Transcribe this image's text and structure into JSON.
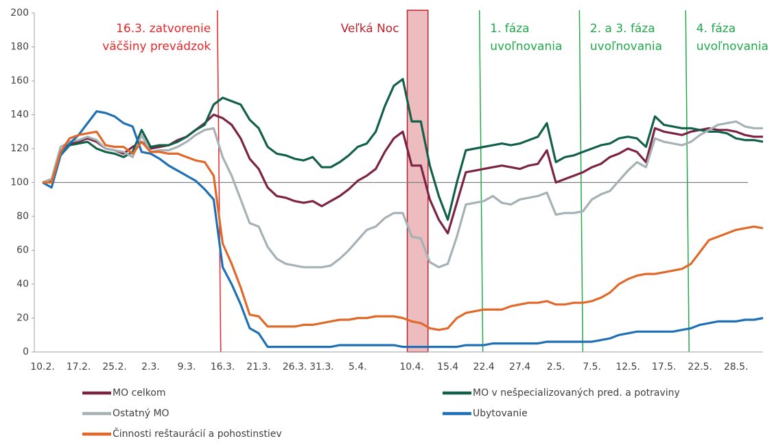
{
  "chart_data": {
    "type": "line",
    "categories": [
      "10.2.",
      null,
      null,
      null,
      "17.2.",
      null,
      null,
      null,
      "25.2.",
      null,
      null,
      null,
      "2.3.",
      null,
      null,
      null,
      "9.3.",
      null,
      null,
      null,
      "16.3.",
      null,
      null,
      null,
      "21.3.",
      null,
      null,
      null,
      "26.3.",
      null,
      null,
      "31.3.",
      null,
      null,
      null,
      "5.4.",
      null,
      null,
      null,
      null,
      null,
      "10.4.",
      null,
      null,
      null,
      "15.4",
      null,
      null,
      null,
      "22.4",
      null,
      null,
      null,
      "27.4",
      null,
      null,
      null,
      "2.5.",
      null,
      null,
      null,
      "7.5.",
      null,
      null,
      null,
      "12.5.",
      null,
      null,
      null,
      "17.5.",
      null,
      null,
      null,
      "22.5.",
      null,
      null,
      null,
      "28.5.",
      null,
      null,
      null
    ],
    "ylim": [
      0,
      200
    ],
    "yticks": [
      0,
      20,
      40,
      60,
      80,
      100,
      120,
      140,
      160,
      180,
      200
    ],
    "grid": false,
    "reference_line": 100,
    "series": [
      {
        "name": "MO celkom",
        "color": "#7b2343",
        "values": [
          100,
          102,
          118,
          123,
          124,
          126,
          124,
          120,
          119,
          117,
          121,
          124,
          120,
          121,
          122,
          125,
          127,
          131,
          135,
          140,
          138,
          134,
          126,
          114,
          108,
          97,
          92,
          91,
          89,
          88,
          89,
          86,
          89,
          92,
          96,
          101,
          104,
          108,
          118,
          126,
          130,
          110,
          110,
          90,
          78,
          70,
          88,
          106,
          107,
          108,
          109,
          110,
          109,
          108,
          110,
          111,
          119,
          100,
          102,
          104,
          106,
          109,
          111,
          115,
          117,
          120,
          118,
          112,
          132,
          130,
          129,
          128,
          130,
          131,
          132,
          131,
          131,
          130,
          128,
          127,
          127
        ]
      },
      {
        "name": "MO v nešpecializovaných pred. a potraviny",
        "color": "#12604a",
        "values": [
          100,
          101,
          116,
          122,
          123,
          124,
          120,
          118,
          117,
          115,
          118,
          131,
          121,
          122,
          122,
          124,
          127,
          131,
          134,
          146,
          150,
          148,
          146,
          137,
          132,
          121,
          117,
          116,
          114,
          113,
          115,
          109,
          109,
          112,
          116,
          121,
          123,
          130,
          145,
          157,
          161,
          136,
          136,
          110,
          92,
          78,
          100,
          119,
          120,
          121,
          122,
          123,
          122,
          123,
          125,
          127,
          135,
          112,
          115,
          116,
          118,
          120,
          122,
          123,
          126,
          127,
          126,
          121,
          139,
          134,
          133,
          132,
          132,
          131,
          130,
          130,
          129,
          126,
          125,
          125,
          124
        ]
      },
      {
        "name": "Ostatný MO",
        "color": "#a6b1b5",
        "values": [
          100,
          102,
          121,
          124,
          125,
          127,
          125,
          120,
          119,
          118,
          115,
          128,
          118,
          119,
          119,
          121,
          124,
          128,
          131,
          132,
          115,
          104,
          90,
          76,
          74,
          62,
          55,
          52,
          51,
          50,
          50,
          50,
          51,
          55,
          60,
          66,
          72,
          74,
          79,
          82,
          82,
          68,
          67,
          53,
          50,
          52,
          68,
          87,
          88,
          89,
          92,
          88,
          87,
          90,
          91,
          92,
          94,
          81,
          82,
          82,
          83,
          90,
          93,
          95,
          101,
          107,
          112,
          109,
          126,
          124,
          123,
          122,
          124,
          128,
          131,
          134,
          135,
          136,
          133,
          132,
          132
        ]
      },
      {
        "name": "Ubytovanie",
        "color": "#1f6fb4",
        "values": [
          100,
          97,
          116,
          123,
          128,
          135,
          142,
          141,
          139,
          135,
          133,
          118,
          117,
          114,
          110,
          107,
          104,
          101,
          96,
          90,
          50,
          40,
          28,
          14,
          11,
          3,
          3,
          3,
          3,
          3,
          3,
          3,
          3,
          4,
          4,
          4,
          4,
          4,
          4,
          4,
          3,
          3,
          3,
          3,
          3,
          3,
          3,
          4,
          4,
          4,
          5,
          5,
          5,
          5,
          5,
          5,
          6,
          6,
          6,
          6,
          6,
          6,
          7,
          8,
          10,
          11,
          12,
          12,
          12,
          12,
          12,
          13,
          14,
          16,
          17,
          18,
          18,
          18,
          19,
          19,
          20
        ]
      },
      {
        "name": "Činnosti reštaurácií a pohostinstiev",
        "color": "#e0692a",
        "values": [
          100,
          100,
          118,
          126,
          128,
          129,
          130,
          122,
          121,
          121,
          117,
          124,
          118,
          118,
          117,
          117,
          115,
          113,
          112,
          104,
          64,
          52,
          38,
          22,
          21,
          15,
          15,
          15,
          15,
          16,
          16,
          17,
          18,
          19,
          19,
          20,
          20,
          21,
          21,
          21,
          20,
          18,
          17,
          14,
          13,
          14,
          20,
          23,
          24,
          25,
          25,
          25,
          27,
          28,
          29,
          29,
          30,
          28,
          28,
          29,
          29,
          30,
          32,
          35,
          40,
          43,
          45,
          46,
          46,
          47,
          48,
          49,
          52,
          59,
          66,
          68,
          70,
          72,
          73,
          74,
          73
        ]
      }
    ],
    "annotations": [
      {
        "kind": "vline",
        "x": 19.6,
        "color": "#e8262a",
        "text": [
          "16.3. zatvorenie",
          "väčšiny prevádzok"
        ],
        "side": "left"
      },
      {
        "kind": "band",
        "x": [
          40.5,
          42.8
        ],
        "color": "#c0202a",
        "text": [
          "Veľká Noc"
        ],
        "side": "left"
      },
      {
        "kind": "vline",
        "x": 48.7,
        "color": "#1faa4a",
        "text": [
          "1. fáza",
          "uvoľnovania"
        ],
        "side": "right"
      },
      {
        "kind": "vline",
        "x": 59.8,
        "color": "#1faa4a",
        "text": [
          "2. a 3. fáza",
          "uvoľnovania"
        ],
        "side": "right"
      },
      {
        "kind": "vline",
        "x": 71.6,
        "color": "#1faa4a",
        "text": [
          "4. fáza",
          "uvoľnovania"
        ],
        "side": "right"
      }
    ],
    "legend": "bottom"
  }
}
